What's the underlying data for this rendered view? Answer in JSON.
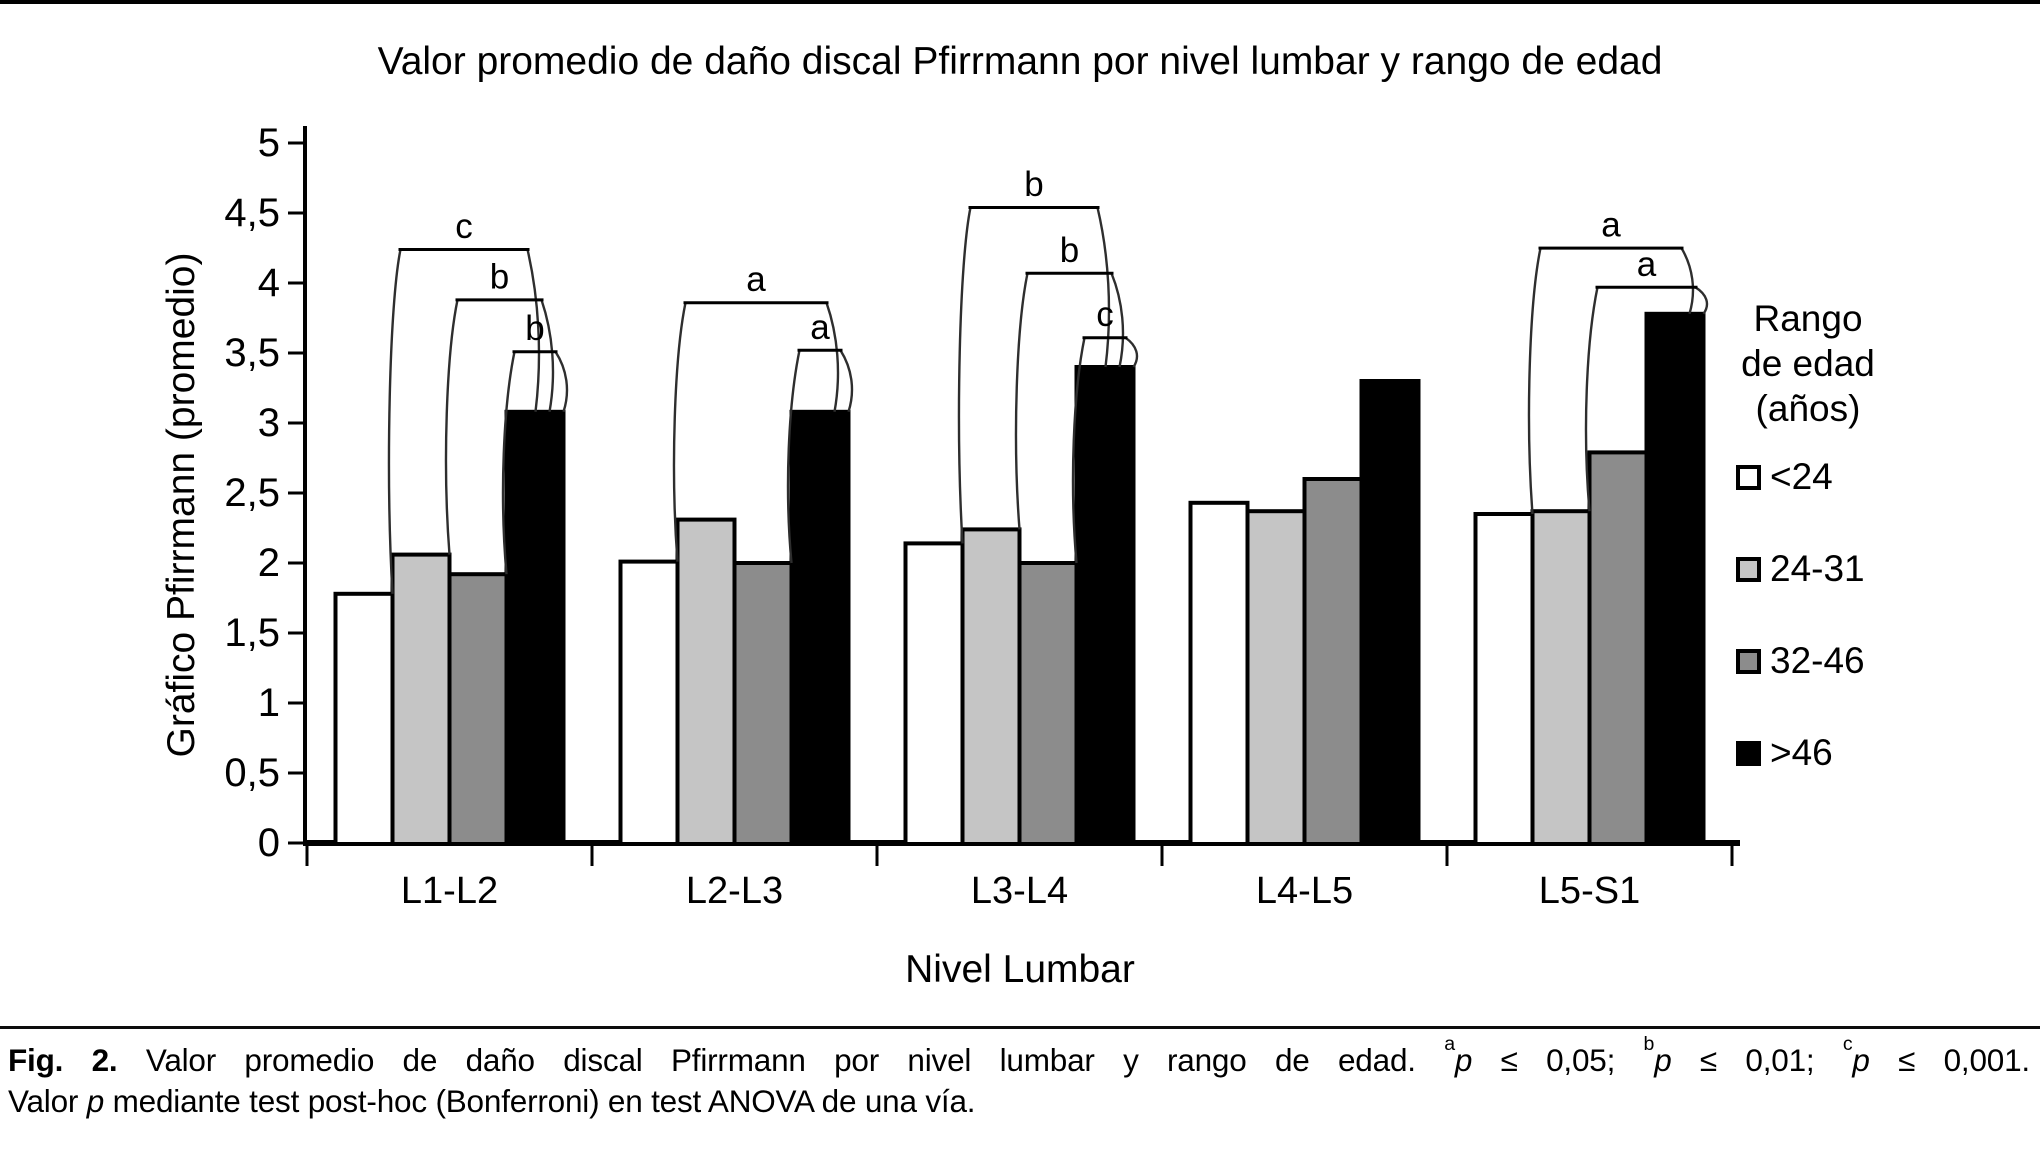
{
  "title": "Valor promedio de daño discal Pfirrmann por nivel lumbar y rango de edad",
  "y_axis": {
    "label": "Gráfico Pfirrmann (promedio)",
    "tick_labels": [
      "0",
      "0,5",
      "1",
      "1,5",
      "2",
      "2,5",
      "3",
      "3,5",
      "4",
      "4,5",
      "5"
    ]
  },
  "x_axis": {
    "label": "Nivel Lumbar"
  },
  "legend": {
    "title_lines": [
      "Rango",
      "de edad",
      "(años)"
    ],
    "items": [
      {
        "label": "<24",
        "color": "#ffffff"
      },
      {
        "label": "24-31",
        "color": "#c5c5c5"
      },
      {
        "label": "32-46",
        "color": "#8c8c8c"
      },
      {
        "label": ">46",
        "color": "#000000"
      }
    ]
  },
  "chart_data": {
    "type": "bar",
    "title": "Valor promedio de daño discal Pfirrmann por nivel lumbar y rango de edad",
    "xlabel": "Nivel Lumbar",
    "ylabel": "Gráfico Pfirrmann (promedio)",
    "ylim": [
      0,
      5
    ],
    "ytick_step": 0.5,
    "decimal_separator": ",",
    "grid": false,
    "legend_position": "right",
    "y_tick_labels": [
      "0",
      "0,5",
      "1",
      "1,5",
      "2",
      "2,5",
      "3",
      "3,5",
      "4",
      "4,5",
      "5"
    ],
    "categories": [
      "L1-L2",
      "L2-L3",
      "L3-L4",
      "L4-L5",
      "L5-S1"
    ],
    "series": [
      {
        "name": "<24",
        "color": "#ffffff",
        "values": [
          1.78,
          2.01,
          2.14,
          2.43,
          2.35
        ]
      },
      {
        "name": "24-31",
        "color": "#c5c5c5",
        "values": [
          2.06,
          2.31,
          2.24,
          2.37,
          2.37
        ]
      },
      {
        "name": "32-46",
        "color": "#8c8c8c",
        "values": [
          1.92,
          2.0,
          2.0,
          2.6,
          2.79
        ]
      },
      {
        "name": ">46",
        "color": "#000000",
        "values": [
          3.08,
          3.08,
          3.4,
          3.3,
          3.78
        ]
      }
    ],
    "significance_brackets": [
      {
        "group": 0,
        "from_series": 0,
        "to_series": 3,
        "height": 4.25,
        "label": "c"
      },
      {
        "group": 0,
        "from_series": 1,
        "to_series": 3,
        "height": 3.89,
        "label": "b"
      },
      {
        "group": 0,
        "from_series": 2,
        "to_series": 3,
        "height": 3.52,
        "label": "b"
      },
      {
        "group": 1,
        "from_series": 0,
        "to_series": 3,
        "height": 3.87,
        "label": "a"
      },
      {
        "group": 1,
        "from_series": 2,
        "to_series": 3,
        "height": 3.53,
        "label": "a"
      },
      {
        "group": 2,
        "from_series": 0,
        "to_series": 3,
        "height": 4.55,
        "label": "b"
      },
      {
        "group": 2,
        "from_series": 1,
        "to_series": 3,
        "height": 4.08,
        "label": "b"
      },
      {
        "group": 2,
        "from_series": 2,
        "to_series": 3,
        "height": 3.62,
        "label": "c"
      },
      {
        "group": 4,
        "from_series": 0,
        "to_series": 3,
        "height": 4.26,
        "label": "a"
      },
      {
        "group": 4,
        "from_series": 1,
        "to_series": 3,
        "height": 3.98,
        "label": "a"
      }
    ]
  },
  "caption": {
    "line1_parts": [
      {
        "text": "Fig. 2.",
        "bold": true
      },
      {
        "text": " Valor promedio de daño discal Pfirrmann por nivel lumbar y rango de edad. "
      },
      {
        "text": "a",
        "sup": true
      },
      {
        "text": "p",
        "italic": true
      },
      {
        "text": " ≤ 0,05; "
      },
      {
        "text": "b",
        "sup": true
      },
      {
        "text": "p",
        "italic": true
      },
      {
        "text": " ≤ 0,01; "
      },
      {
        "text": "c",
        "sup": true
      },
      {
        "text": "p",
        "italic": true
      },
      {
        "text": " ≤ 0,001."
      }
    ],
    "line2_parts": [
      {
        "text": "Valor "
      },
      {
        "text": "p",
        "italic": true
      },
      {
        "text": " mediante test post-hoc (Bonferroni) en test ANOVA de una vía."
      }
    ]
  }
}
